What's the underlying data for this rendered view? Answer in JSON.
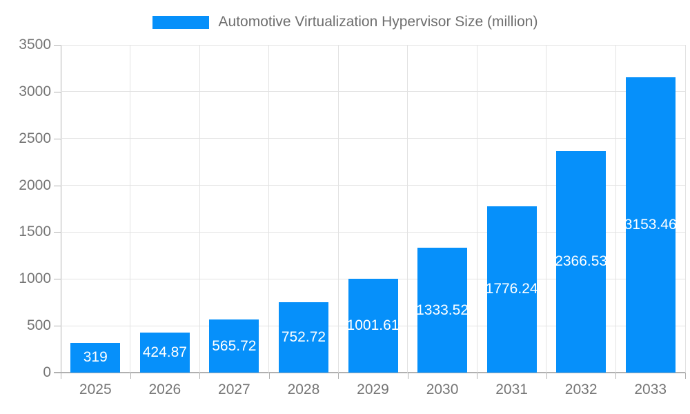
{
  "legend": {
    "label": "Automotive Virtualization Hypervisor Size (million)"
  },
  "chart_data": {
    "type": "bar",
    "title": "Automotive Virtualization Hypervisor Size (million)",
    "categories": [
      "2025",
      "2026",
      "2027",
      "2028",
      "2029",
      "2030",
      "2031",
      "2032",
      "2033"
    ],
    "values": [
      319,
      424.87,
      565.72,
      752.72,
      1001.61,
      1333.52,
      1776.24,
      2366.53,
      3153.46
    ],
    "value_labels": [
      "319",
      "424.87",
      "565.72",
      "752.72",
      "1001.61",
      "1333.52",
      "1776.24",
      "2366.53",
      "3153.46"
    ],
    "xlabel": "",
    "ylabel": "",
    "ylim": [
      0,
      3500
    ],
    "y_ticks": [
      0,
      500,
      1000,
      1500,
      2000,
      2500,
      3000,
      3500
    ],
    "grid": true,
    "legend_position": "top",
    "series_name": "Automotive Virtualization Hypervisor Size (million)",
    "colors": {
      "bar": "#0690fa",
      "bar_label": "#ffffff",
      "axis_text": "#757575",
      "legend_text": "#6e6e6e",
      "gridline": "#e2e2e2",
      "axis_line": "#b0b0b0",
      "background": "#ffffff"
    }
  }
}
